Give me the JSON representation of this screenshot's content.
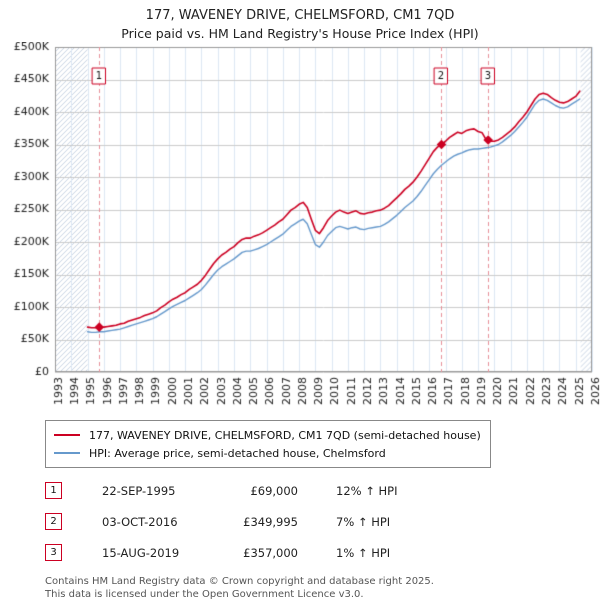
{
  "title": "177, WAVENEY DRIVE, CHELMSFORD, CM1 7QD",
  "subtitle": "Price paid vs. HM Land Registry's House Price Index (HPI)",
  "legend": {
    "series1": "177, WAVENEY DRIVE, CHELMSFORD, CM1 7QD (semi-detached house)",
    "series2": "HPI: Average price, semi-detached house, Chelmsford"
  },
  "transactions": [
    {
      "num": "1",
      "date": "22-SEP-1995",
      "price": "£69,000",
      "hpi": "12% ↑ HPI"
    },
    {
      "num": "2",
      "date": "03-OCT-2016",
      "price": "£349,995",
      "hpi": "7% ↑ HPI"
    },
    {
      "num": "3",
      "date": "15-AUG-2019",
      "price": "£357,000",
      "hpi": "1% ↑ HPI"
    }
  ],
  "footer": {
    "line1": "Contains HM Land Registry data © Crown copyright and database right 2025.",
    "line2": "This data is licensed under the Open Government Licence v3.0."
  },
  "chart_data": {
    "type": "line",
    "title": "177, WAVENEY DRIVE, CHELMSFORD, CM1 7QD — Price paid vs. HPI",
    "xlim": [
      1993,
      2026
    ],
    "ylim_k": [
      0,
      500
    ],
    "ytick_step_k": 50,
    "y_ticks": [
      "£0",
      "£50K",
      "£100K",
      "£150K",
      "£200K",
      "£250K",
      "£300K",
      "£350K",
      "£400K",
      "£450K",
      "£500K"
    ],
    "x_ticks": [
      1993,
      1994,
      1995,
      1996,
      1997,
      1998,
      1999,
      2000,
      2001,
      2002,
      2003,
      2004,
      2005,
      2006,
      2007,
      2008,
      2009,
      2010,
      2011,
      2012,
      2013,
      2014,
      2015,
      2016,
      2017,
      2018,
      2019,
      2020,
      2021,
      2022,
      2023,
      2024,
      2025,
      2026
    ],
    "grid": true,
    "legend_position": "bottom",
    "colors": {
      "property": "#cc0022",
      "hpi": "#6699cc",
      "grid_v": "#dde8f4",
      "grid_h": "#cccccc",
      "border": "#999999",
      "hatch": "#c9d4e4",
      "sale_line": "#e78f99",
      "marker": "#cc0022",
      "marker_box": "#cc0022"
    },
    "sale_box_y_k": 455,
    "hatch_regions": [
      [
        1993,
        1995.0
      ],
      [
        2025.3,
        2026
      ]
    ],
    "series": [
      {
        "name": "HPI: Average price, semi-detached house, Chelmsford",
        "x_start": 1995.0,
        "x_step": 0.25,
        "values_k": [
          62,
          61,
          61,
          62,
          62,
          63,
          64,
          65,
          66,
          68,
          70,
          72,
          74,
          76,
          78,
          80,
          82,
          85,
          89,
          93,
          97,
          101,
          104,
          107,
          110,
          114,
          118,
          122,
          127,
          134,
          142,
          150,
          157,
          162,
          166,
          170,
          174,
          179,
          184,
          186,
          186,
          188,
          190,
          193,
          196,
          200,
          204,
          208,
          212,
          218,
          224,
          228,
          232,
          235,
          228,
          212,
          196,
          192,
          200,
          210,
          216,
          222,
          224,
          222,
          220,
          222,
          223,
          220,
          219,
          221,
          222,
          223,
          224,
          227,
          231,
          236,
          241,
          247,
          253,
          258,
          263,
          270,
          278,
          287,
          296,
          305,
          312,
          318,
          323,
          328,
          332,
          335,
          337,
          340,
          342,
          343,
          343,
          344,
          345,
          346,
          348,
          350,
          354,
          359,
          364,
          370,
          377,
          384,
          392,
          402,
          412,
          418,
          420,
          418,
          414,
          410,
          407,
          406,
          408,
          412,
          416,
          420
        ]
      },
      {
        "name": "177, WAVENEY DRIVE, CHELMSFORD, CM1 7QD (semi-detached house)",
        "x_start": 1995.0,
        "x_step": 0.25,
        "values_k": [
          69,
          68,
          68,
          69,
          69,
          70,
          71,
          72,
          74,
          75,
          78,
          80,
          82,
          84,
          87,
          89,
          91,
          94,
          99,
          103,
          108,
          112,
          115,
          119,
          122,
          127,
          131,
          135,
          141,
          149,
          158,
          167,
          174,
          180,
          184,
          189,
          193,
          199,
          204,
          206,
          206,
          209,
          211,
          214,
          218,
          222,
          226,
          231,
          235,
          242,
          249,
          253,
          258,
          261,
          253,
          235,
          218,
          213,
          222,
          233,
          240,
          246,
          249,
          246,
          244,
          246,
          248,
          244,
          243,
          245,
          246,
          248,
          249,
          252,
          256,
          262,
          268,
          274,
          281,
          286,
          292,
          300,
          309,
          319,
          329,
          339,
          346,
          350,
          355,
          361,
          365,
          369,
          367,
          371,
          373,
          374,
          370,
          368,
          357,
          355,
          355,
          357,
          361,
          366,
          371,
          377,
          385,
          392,
          400,
          410,
          420,
          427,
          429,
          427,
          422,
          418,
          415,
          414,
          416,
          420,
          424,
          432
        ]
      }
    ],
    "sales": [
      {
        "label": "1",
        "x": 1995.72,
        "y_k": 69,
        "price": 69000
      },
      {
        "label": "2",
        "x": 2016.75,
        "y_k": 350,
        "price": 349995
      },
      {
        "label": "3",
        "x": 2019.62,
        "y_k": 357,
        "price": 357000
      }
    ]
  }
}
